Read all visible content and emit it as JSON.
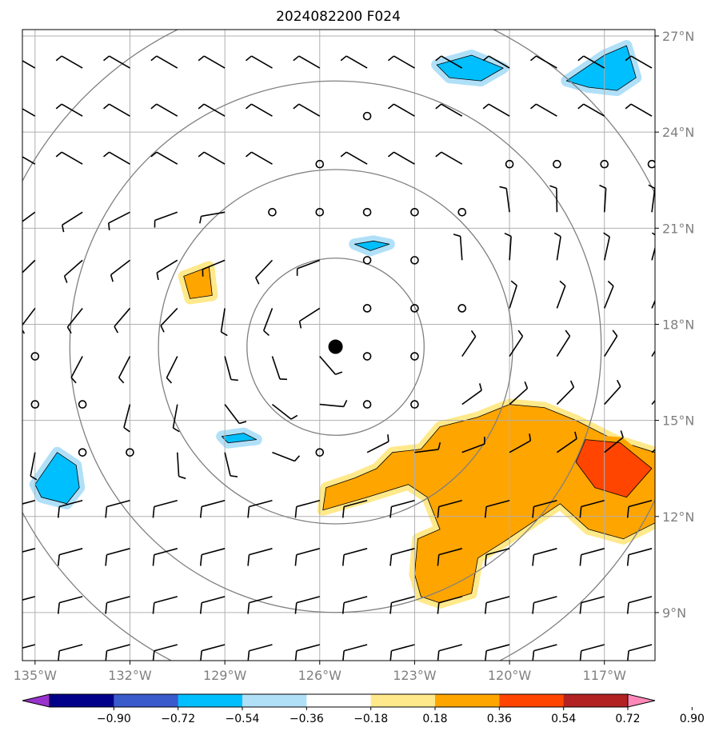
{
  "chart_data": {
    "type": "map",
    "title": "2024082200 F024",
    "x_range_deg_east": [
      -135.4,
      -115.4
    ],
    "y_range_deg_north": [
      7.5,
      27.2
    ],
    "x_ticks": [
      {
        "value": -135,
        "label": "135°W"
      },
      {
        "value": -132,
        "label": "132°W"
      },
      {
        "value": -129,
        "label": "129°W"
      },
      {
        "value": -126,
        "label": "126°W"
      },
      {
        "value": -123,
        "label": "123°W"
      },
      {
        "value": -120,
        "label": "120°W"
      },
      {
        "value": -117,
        "label": "117°W"
      }
    ],
    "y_ticks": [
      {
        "value": 9,
        "label": "9°N"
      },
      {
        "value": 12,
        "label": "12°N"
      },
      {
        "value": 15,
        "label": "15°N"
      },
      {
        "value": 18,
        "label": "18°N"
      },
      {
        "value": 21,
        "label": "21°N"
      },
      {
        "value": 24,
        "label": "24°N"
      },
      {
        "value": 27,
        "label": "27°N"
      }
    ],
    "grid": true,
    "center_marker": {
      "lon": -125.5,
      "lat": 17.3
    },
    "range_rings_deg": [
      2.8,
      5.6,
      8.4,
      11.2
    ],
    "colorbar": {
      "position": "bottom",
      "extend": "both",
      "tick_labels": [
        "−0.90",
        "−0.72",
        "−0.54",
        "−0.36",
        "−0.18",
        "0.18",
        "0.36",
        "0.54",
        "0.72",
        "0.90"
      ],
      "colors": [
        "#9932cc",
        "#00008b",
        "#3a5bcc",
        "#00bfff",
        "#b0e0f8",
        "#ffffff",
        "#ffe98a",
        "#ffa500",
        "#ff4500",
        "#b22222",
        "#ff88b8"
      ]
    },
    "wind_barbs": {
      "lons": [
        -135,
        -133.5,
        -132,
        -130.5,
        -129,
        -127.5,
        -126,
        -124.5,
        -123,
        -121.5,
        -120,
        -118.5,
        -117,
        -115.5
      ],
      "lats": [
        8,
        9.5,
        11,
        12.5,
        14,
        15.5,
        17,
        18.5,
        20,
        21.5,
        23,
        24.5,
        26
      ],
      "calm_points": [
        [
          -124.5,
          24.5
        ],
        [
          -126,
          23
        ],
        [
          -120,
          23
        ],
        [
          -118.5,
          23
        ],
        [
          -117,
          23
        ],
        [
          -115.5,
          23
        ],
        [
          -127.5,
          21.5
        ],
        [
          -126,
          21.5
        ],
        [
          -124.5,
          21.5
        ],
        [
          -123,
          21.5
        ],
        [
          -121.5,
          21.5
        ],
        [
          -124.5,
          20
        ],
        [
          -123,
          20
        ],
        [
          -124.5,
          18.5
        ],
        [
          -123,
          18.5
        ],
        [
          -121.5,
          18.5
        ],
        [
          -135,
          17
        ],
        [
          -124.5,
          17
        ],
        [
          -123,
          17
        ],
        [
          -135,
          15.5
        ],
        [
          -133.5,
          15.5
        ],
        [
          -124.5,
          15.5
        ],
        [
          -123,
          15.5
        ],
        [
          -133.5,
          14
        ],
        [
          -132,
          14
        ],
        [
          -126,
          14
        ]
      ]
    },
    "shaded_regions": [
      {
        "level": "0.36 to 0.54",
        "color": "#ffa500",
        "points": [
          [
            -125.9,
            12.2
          ],
          [
            -125.8,
            12.9
          ],
          [
            -124.9,
            13.2
          ],
          [
            -124.2,
            13.5
          ],
          [
            -123.7,
            14.0
          ],
          [
            -122.8,
            14.1
          ],
          [
            -122.2,
            14.8
          ],
          [
            -121.0,
            15.1
          ],
          [
            -120.0,
            15.5
          ],
          [
            -118.9,
            15.4
          ],
          [
            -117.9,
            15.0
          ],
          [
            -116.7,
            14.4
          ],
          [
            -115.4,
            14.0
          ],
          [
            -115.4,
            11.8
          ],
          [
            -116.4,
            11.3
          ],
          [
            -117.5,
            11.6
          ],
          [
            -118.4,
            12.4
          ],
          [
            -119.3,
            11.8
          ],
          [
            -120.2,
            11.2
          ],
          [
            -121.0,
            10.7
          ],
          [
            -121.2,
            9.6
          ],
          [
            -122.2,
            9.3
          ],
          [
            -122.8,
            9.5
          ],
          [
            -123.0,
            10.2
          ],
          [
            -122.9,
            11.3
          ],
          [
            -122.2,
            11.6
          ],
          [
            -122.6,
            12.6
          ],
          [
            -123.2,
            13.0
          ],
          [
            -124.5,
            12.6
          ]
        ]
      },
      {
        "level": "0.54 to 0.72",
        "color": "#ff4500",
        "points": [
          [
            -117.6,
            14.4
          ],
          [
            -116.5,
            14.3
          ],
          [
            -115.5,
            13.5
          ],
          [
            -116.3,
            12.6
          ],
          [
            -117.3,
            12.9
          ],
          [
            -117.9,
            13.7
          ]
        ]
      },
      {
        "level": "0.36 to 0.54",
        "color": "#ffa500",
        "points": [
          [
            -130.3,
            19.5
          ],
          [
            -129.5,
            19.8
          ],
          [
            -129.4,
            18.9
          ],
          [
            -130.1,
            18.8
          ]
        ]
      },
      {
        "level": "-0.54 to -0.36",
        "color": "#00bfff",
        "points": [
          [
            -135.0,
            13.0
          ],
          [
            -134.3,
            14.0
          ],
          [
            -133.7,
            13.6
          ],
          [
            -133.6,
            12.9
          ],
          [
            -134.0,
            12.4
          ],
          [
            -134.8,
            12.6
          ]
        ]
      },
      {
        "level": "-0.54 to -0.36",
        "color": "#00bfff",
        "points": [
          [
            -122.3,
            26.1
          ],
          [
            -121.2,
            26.4
          ],
          [
            -120.2,
            26.0
          ],
          [
            -120.9,
            25.6
          ],
          [
            -121.9,
            25.7
          ]
        ]
      },
      {
        "level": "-0.54 to -0.36",
        "color": "#00bfff",
        "points": [
          [
            -118.2,
            25.6
          ],
          [
            -117.0,
            26.4
          ],
          [
            -116.3,
            26.7
          ],
          [
            -116.0,
            25.7
          ],
          [
            -116.6,
            25.3
          ],
          [
            -117.5,
            25.4
          ]
        ]
      },
      {
        "level": "-0.54 to -0.36",
        "color": "#00bfff",
        "points": [
          [
            -129.1,
            14.5
          ],
          [
            -128.4,
            14.6
          ],
          [
            -128.0,
            14.4
          ],
          [
            -128.9,
            14.3
          ]
        ]
      },
      {
        "level": "-0.54 to -0.36",
        "color": "#00bfff",
        "points": [
          [
            -124.9,
            20.5
          ],
          [
            -124.3,
            20.6
          ],
          [
            -123.8,
            20.5
          ],
          [
            -124.4,
            20.3
          ]
        ]
      }
    ]
  }
}
